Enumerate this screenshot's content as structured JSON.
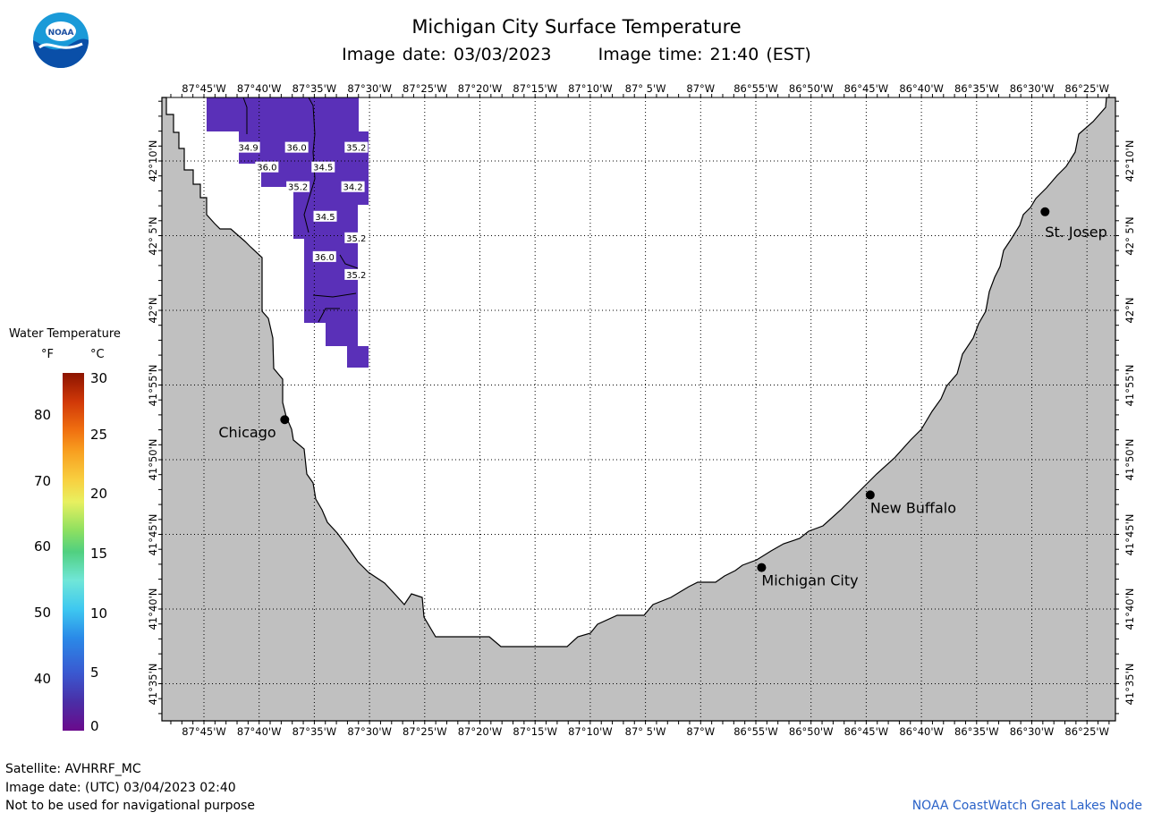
{
  "title": "Michigan City Surface Temperature",
  "subtitle_date": "Image date: 03/03/2023",
  "subtitle_time": "Image time: 21:40 (EST)",
  "logo_text": "NOAA",
  "lon_labels": [
    "87°45'W",
    "87°40'W",
    "87°35'W",
    "87°30'W",
    "87°25'W",
    "87°20'W",
    "87°15'W",
    "87°10'W",
    "87° 5'W",
    "87°W",
    "86°55'W",
    "86°50'W",
    "86°45'W",
    "86°40'W",
    "86°35'W",
    "86°30'W",
    "86°25'W"
  ],
  "lat_labels": [
    "42°10'N",
    "42° 5'N",
    "42°N",
    "41°55'N",
    "41°50'N",
    "41°45'N",
    "41°40'N",
    "41°35'N"
  ],
  "legend": {
    "title": "Water Temperature",
    "unit_f": "°F",
    "unit_c": "°C",
    "f_ticks": [
      "80",
      "70",
      "60",
      "50",
      "40"
    ],
    "c_ticks": [
      "30",
      "25",
      "20",
      "15",
      "10",
      "5",
      "0"
    ]
  },
  "cities": [
    {
      "name": "Chicago",
      "lon": -87.628,
      "lat": 41.878
    },
    {
      "name": "Michigan City",
      "lon": -86.908,
      "lat": 41.713
    },
    {
      "name": "New Buffalo",
      "lon": -86.744,
      "lat": 41.794
    },
    {
      "name": "St. Josep",
      "lon": -86.48,
      "lat": 42.11
    }
  ],
  "temperature_labels": [
    {
      "text": "34.9",
      "lon": -87.683,
      "lat": 42.182
    },
    {
      "text": "36.0",
      "lon": -87.61,
      "lat": 42.182
    },
    {
      "text": "35.2",
      "lon": -87.52,
      "lat": 42.182
    },
    {
      "text": "36.0",
      "lon": -87.655,
      "lat": 42.16
    },
    {
      "text": "34.5",
      "lon": -87.57,
      "lat": 42.16
    },
    {
      "text": "35.2",
      "lon": -87.608,
      "lat": 42.138
    },
    {
      "text": "34.2",
      "lon": -87.525,
      "lat": 42.138
    },
    {
      "text": "34.5",
      "lon": -87.567,
      "lat": 42.105
    },
    {
      "text": "35.2",
      "lon": -87.52,
      "lat": 42.081
    },
    {
      "text": "36.0",
      "lon": -87.568,
      "lat": 42.06
    },
    {
      "text": "35.2",
      "lon": -87.52,
      "lat": 42.04
    }
  ],
  "footer": {
    "satellite": "Satellite: AVHRRF_MC",
    "utc_date": "Image date: (UTC) 03/04/2023  02:40",
    "disclaimer": "Not to be used for navigational purpose",
    "credit": "NOAA CoastWatch Great Lakes Node"
  },
  "colors": {
    "land": "#c0c0c0",
    "water_temp": "#5a30b8",
    "city": "#000000",
    "credit": "#2a62c8"
  }
}
